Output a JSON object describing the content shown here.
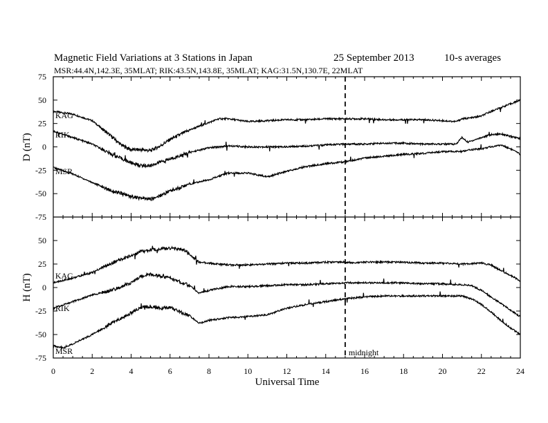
{
  "header": {
    "title": "Magnetic Field Variations at 3 Stations in Japan",
    "date": "25 September 2013",
    "averaging": "10-s averages",
    "subtitle": "MSR:44.4N,142.3E, 35MLAT;  RIK:43.5N,143.8E, 35MLAT;  KAG:31.5N,130.7E, 22MLAT"
  },
  "chart_data": [
    {
      "type": "line",
      "panel": "D",
      "ylabel": "D (nT)",
      "xlim": [
        0,
        24
      ],
      "ylim": [
        -75,
        75
      ],
      "yticks": [
        75,
        50,
        25,
        0,
        -25,
        -50,
        -75
      ],
      "ytick_labels": [
        "75",
        "50",
        "25",
        "0",
        "-25",
        "-50",
        "-75"
      ],
      "grid": false,
      "series": [
        {
          "name": "KAG",
          "x": [
            0,
            1,
            2,
            3,
            3.5,
            4,
            4.5,
            5,
            5.5,
            6,
            7,
            8,
            8.5,
            9,
            10,
            11,
            12,
            13,
            14,
            15,
            16,
            17,
            18,
            19,
            20,
            20.7,
            21,
            21.5,
            22,
            22.5,
            23,
            23.5,
            24
          ],
          "y": [
            38,
            35,
            28,
            11,
            2,
            -3,
            -3,
            -4,
            1,
            8,
            18,
            26,
            30,
            30,
            27,
            28,
            29,
            29,
            30,
            30,
            30,
            29,
            29,
            29,
            28,
            27,
            30,
            31,
            33,
            38,
            42,
            46,
            50
          ]
        },
        {
          "name": "RIK",
          "x": [
            0,
            1,
            2,
            3,
            4,
            4.5,
            5,
            5.5,
            6,
            7,
            8,
            9,
            10,
            11,
            12,
            13,
            14,
            15,
            16,
            17,
            18,
            19,
            20,
            20.7,
            21,
            21.3,
            22,
            22.5,
            23,
            23.5,
            24
          ],
          "y": [
            17,
            10,
            3,
            -8,
            -17,
            -20,
            -20,
            -16,
            -13,
            -6,
            -1,
            1,
            0,
            0,
            0,
            1,
            2,
            3,
            3,
            4,
            4,
            3,
            3,
            3,
            10,
            5,
            10,
            13,
            14,
            11,
            9
          ]
        },
        {
          "name": "MSR",
          "x": [
            0,
            1,
            2,
            3,
            4,
            4.5,
            5,
            5.5,
            6,
            7,
            8,
            9,
            10,
            11,
            12,
            13,
            14,
            15,
            16,
            17,
            18,
            19,
            20,
            21,
            21.5,
            22,
            22.5,
            23,
            23.5,
            24
          ],
          "y": [
            -22,
            -29,
            -38,
            -47,
            -53,
            -55,
            -56,
            -52,
            -47,
            -40,
            -35,
            -28,
            -28,
            -32,
            -26,
            -21,
            -18,
            -16,
            -12,
            -10,
            -8,
            -7,
            -5,
            -5,
            -3,
            -2,
            0,
            2,
            -2,
            -8
          ]
        }
      ]
    },
    {
      "type": "line",
      "panel": "H",
      "ylabel": "H (nT)",
      "xlabel": "Universal Time",
      "xlim": [
        0,
        24
      ],
      "ylim": [
        -75,
        75
      ],
      "xticks": [
        0,
        2,
        4,
        6,
        8,
        10,
        12,
        14,
        16,
        18,
        20,
        22,
        24
      ],
      "xtick_labels": [
        "0",
        "2",
        "4",
        "6",
        "8",
        "10",
        "12",
        "14",
        "16",
        "18",
        "20",
        "22",
        "24"
      ],
      "yticks": [
        50,
        25,
        0,
        -25,
        -50,
        -75
      ],
      "ytick_labels": [
        "50",
        "25",
        "0",
        "-25",
        "-50",
        "-75"
      ],
      "grid": false,
      "series": [
        {
          "name": "KAG",
          "x": [
            0,
            1,
            2,
            3,
            4,
            4.5,
            5,
            6,
            6.7,
            7.5,
            8,
            9,
            10,
            11,
            12,
            13,
            14,
            15,
            15.5,
            16,
            17,
            18,
            19,
            20,
            21,
            22,
            22.5,
            23,
            23.5,
            24
          ],
          "y": [
            5,
            10,
            16,
            26,
            34,
            38,
            40,
            42,
            40,
            27,
            26,
            24,
            24,
            25,
            26,
            26,
            27,
            27,
            26,
            27,
            27,
            27,
            26,
            26,
            25,
            26,
            24,
            18,
            13,
            7
          ]
        },
        {
          "name": "RIK",
          "x": [
            0,
            1,
            2,
            3,
            4,
            4.5,
            5,
            6,
            7,
            7.5,
            8,
            9,
            10,
            11,
            12,
            13,
            14,
            15,
            16,
            17,
            18,
            19,
            20,
            21,
            21.5,
            22,
            22.5,
            23,
            23.5,
            24
          ],
          "y": [
            -22,
            -15,
            -8,
            -3,
            5,
            12,
            14,
            10,
            2,
            -6,
            -3,
            1,
            1,
            2,
            3,
            3,
            4,
            5,
            5,
            5,
            5,
            4,
            4,
            3,
            2,
            -3,
            -10,
            -17,
            -24,
            -31
          ]
        },
        {
          "name": "MSR",
          "x": [
            0,
            0.5,
            1,
            2,
            3,
            4,
            4.5,
            5,
            5.5,
            6,
            7,
            7.5,
            8,
            9,
            10,
            11,
            12,
            13,
            14,
            15,
            16,
            17,
            18,
            19,
            20,
            21,
            21.5,
            22,
            22.5,
            23,
            23.5,
            24
          ],
          "y": [
            -62,
            -64,
            -60,
            -50,
            -38,
            -27,
            -21,
            -20,
            -22,
            -21,
            -30,
            -38,
            -35,
            -32,
            -31,
            -29,
            -22,
            -18,
            -15,
            -12,
            -10,
            -9,
            -9,
            -9,
            -9,
            -9,
            -12,
            -18,
            -26,
            -35,
            -43,
            -50
          ]
        }
      ]
    }
  ],
  "annotations": {
    "midnight_ut": 15,
    "midnight_label": "midnight"
  }
}
